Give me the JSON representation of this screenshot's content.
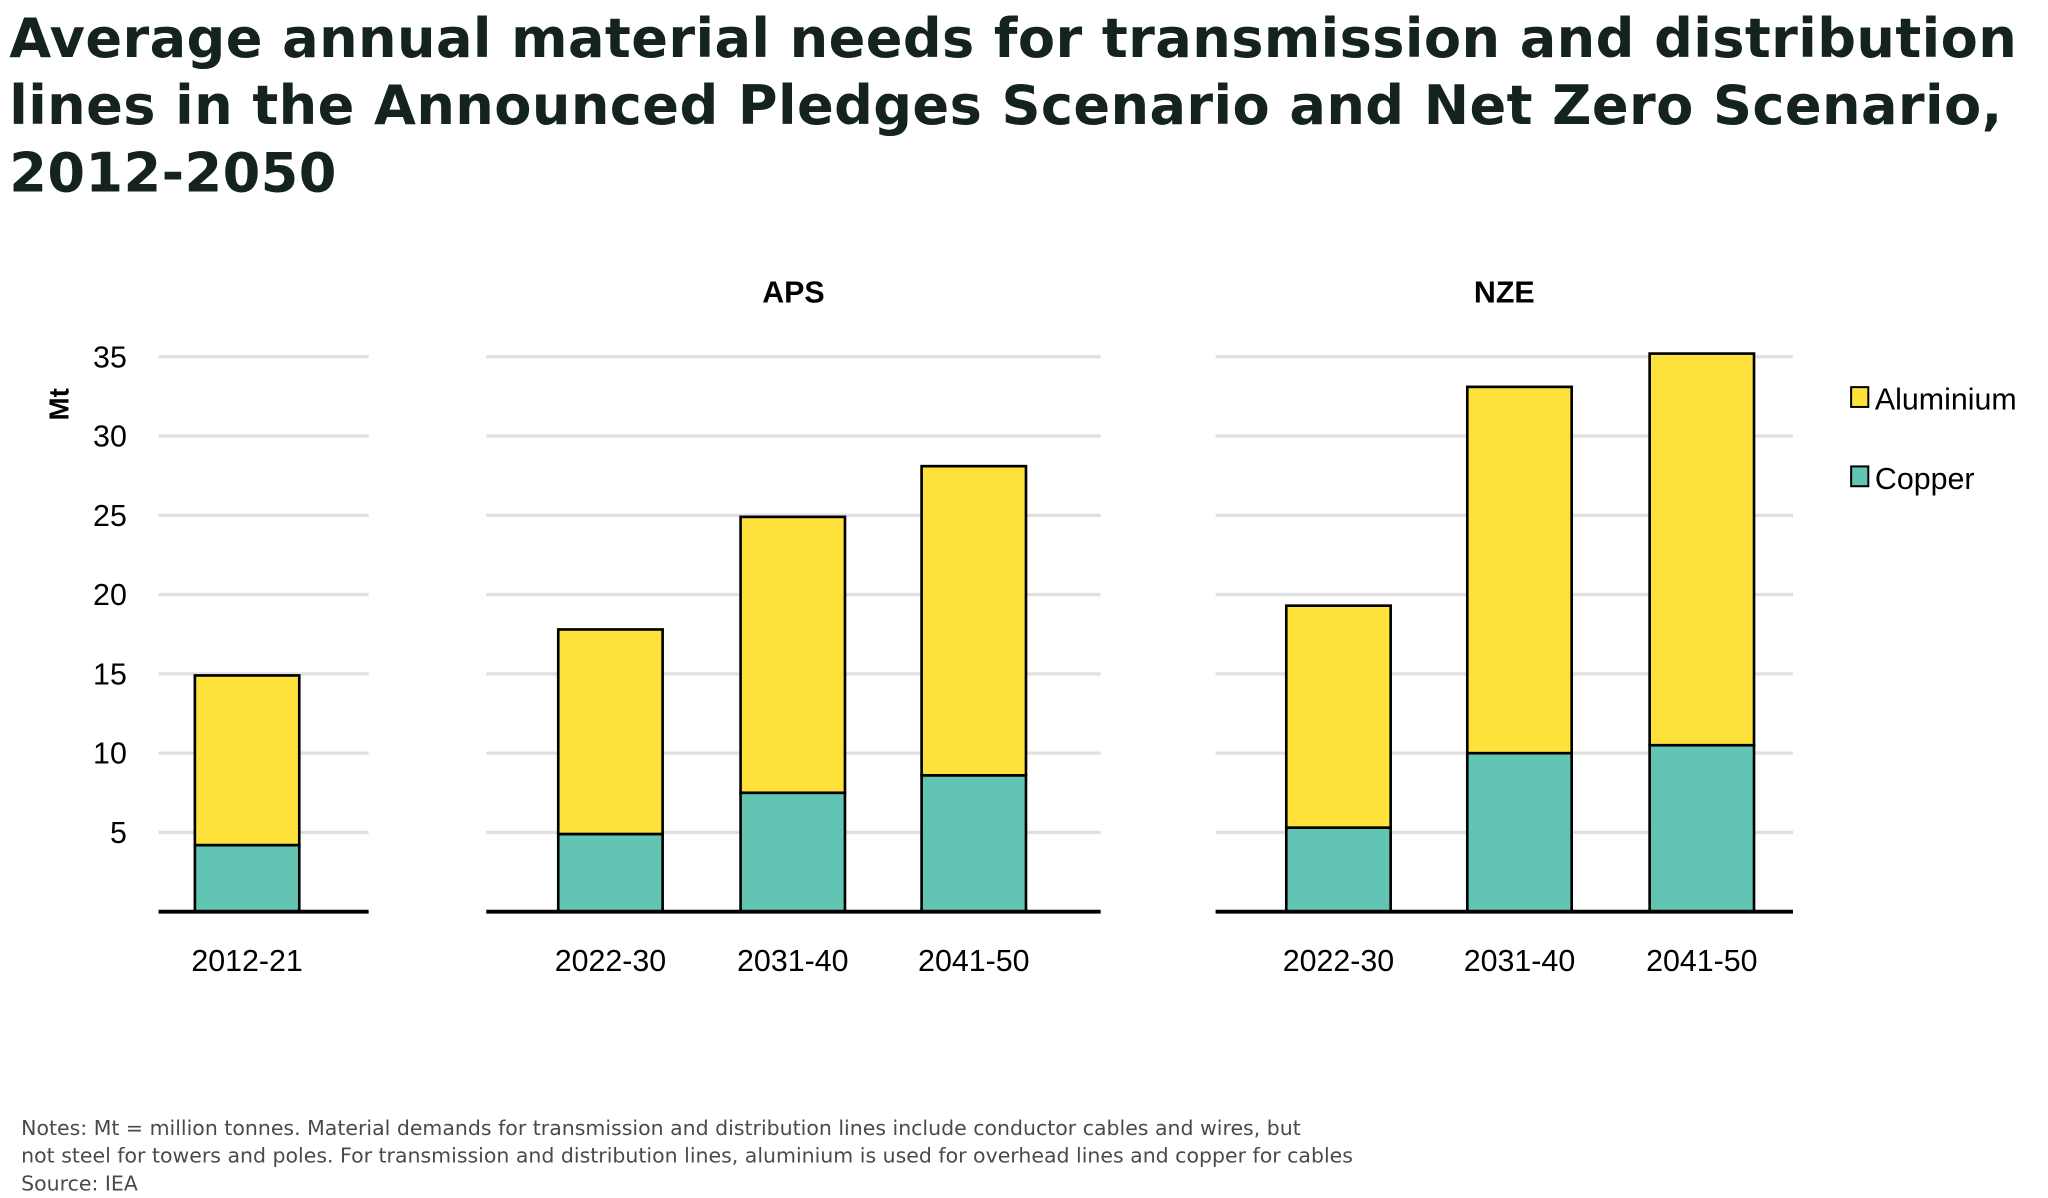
{
  "title": "Average annual material needs for transmission and distribution lines in the Announced Pledges Scenario and Net Zero Scenario, 2012-2050",
  "notes": [
    "Notes: Mt = million tonnes. Material demands for transmission and distribution lines include conductor cables and wires, but",
    "not steel for towers and poles. For transmission and distribution lines, aluminium is used for overhead lines and copper for cables",
    "Source: IEA"
  ],
  "chart_data": {
    "type": "bar",
    "stacked": true,
    "ylabel": "Mt",
    "ylim": [
      0,
      35
    ],
    "yticks": [
      5,
      10,
      15,
      20,
      25,
      30,
      35
    ],
    "grid": true,
    "legend_placement": "right",
    "colors": {
      "Aluminium": "#fee13a",
      "Copper": "#62c4b2"
    },
    "legend": [
      "Aluminium",
      "Copper"
    ],
    "panels": [
      {
        "title": "",
        "categories": [
          "2012-21"
        ],
        "series": [
          {
            "name": "Copper",
            "values": [
              4.2
            ]
          },
          {
            "name": "Aluminium",
            "values": [
              10.7
            ]
          }
        ]
      },
      {
        "title": "APS",
        "categories": [
          "2022-30",
          "2031-40",
          "2041-50"
        ],
        "series": [
          {
            "name": "Copper",
            "values": [
              4.9,
              7.5,
              8.6
            ]
          },
          {
            "name": "Aluminium",
            "values": [
              12.9,
              17.4,
              19.5
            ]
          }
        ]
      },
      {
        "title": "NZE",
        "categories": [
          "2022-30",
          "2031-40",
          "2041-50"
        ],
        "series": [
          {
            "name": "Copper",
            "values": [
              5.3,
              10.0,
              10.5
            ]
          },
          {
            "name": "Aluminium",
            "values": [
              14.0,
              23.1,
              24.7
            ]
          }
        ]
      }
    ]
  }
}
